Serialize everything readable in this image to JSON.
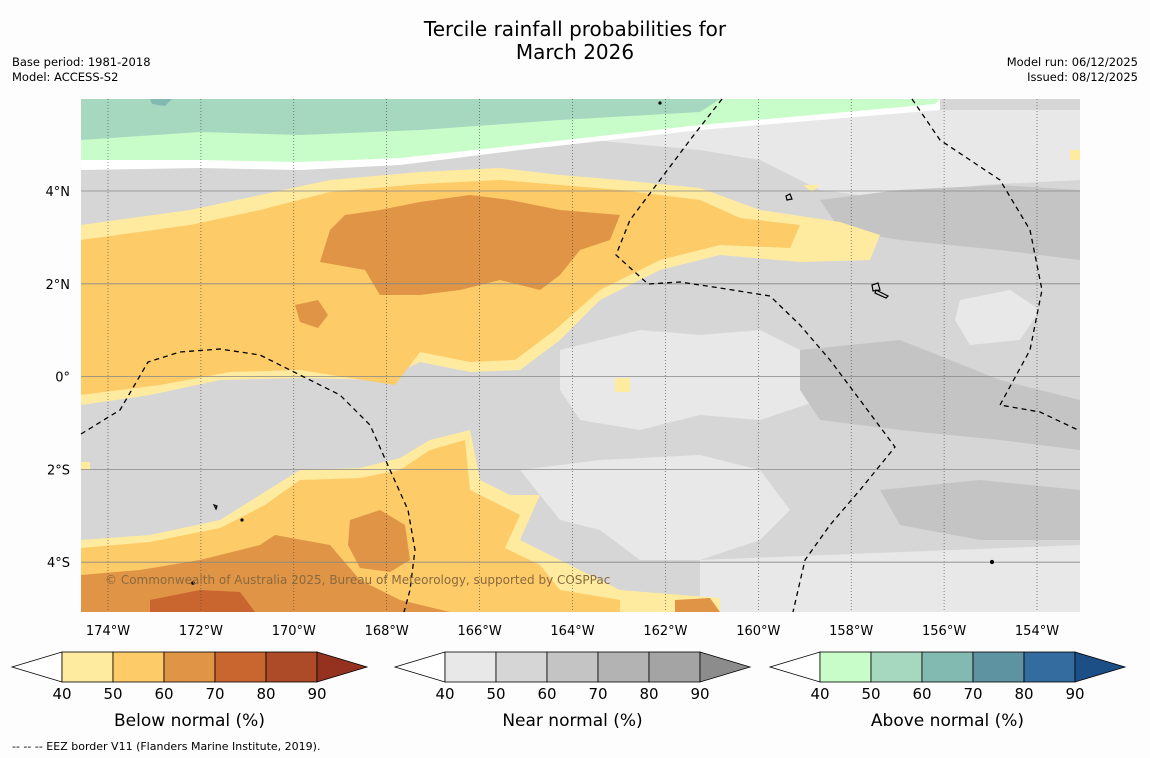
{
  "title": {
    "line1": "Tercile rainfall probabilities for",
    "line2": "March 2026"
  },
  "meta_left": {
    "base_period": "Base period: 1981-2018",
    "model": "Model: ACCESS-S2"
  },
  "meta_right": {
    "model_run": "Model run: 06/12/2025",
    "issued": "Issued: 08/12/2025"
  },
  "map": {
    "longitude_labels": [
      "174°W",
      "172°W",
      "170°W",
      "168°W",
      "166°W",
      "164°W",
      "162°W",
      "160°W",
      "158°W",
      "156°W",
      "154°W"
    ],
    "latitude_labels": [
      "4°N",
      "2°N",
      "0°",
      "2°S",
      "4°S"
    ],
    "copyright": "© Commonwealth of Australia 2025, Bureau of Meteorology, supported by COSPPac"
  },
  "colorbars": [
    {
      "title": "Below normal (%)",
      "ticks": [
        "40",
        "50",
        "60",
        "70",
        "80",
        "90"
      ],
      "colors": [
        "#ffffff",
        "#ffeb9f",
        "#fdcb68",
        "#e09445",
        "#c9652f",
        "#ad4a27",
        "#95321f"
      ]
    },
    {
      "title": "Near normal (%)",
      "ticks": [
        "40",
        "50",
        "60",
        "70",
        "80",
        "90"
      ],
      "colors": [
        "#ffffff",
        "#e8e8e8",
        "#d6d6d6",
        "#c4c4c4",
        "#b3b3b3",
        "#a4a4a4",
        "#8c8c8c"
      ]
    },
    {
      "title": "Above normal (%)",
      "ticks": [
        "40",
        "50",
        "60",
        "70",
        "80",
        "90"
      ],
      "colors": [
        "#ffffff",
        "#c8fcc8",
        "#a5d8be",
        "#82b9b1",
        "#5e93a1",
        "#356ca0",
        "#1c4f86"
      ]
    }
  ],
  "footnote": "--  --  -- EEZ border V11 (Flanders Marine Institute, 2019)."
}
